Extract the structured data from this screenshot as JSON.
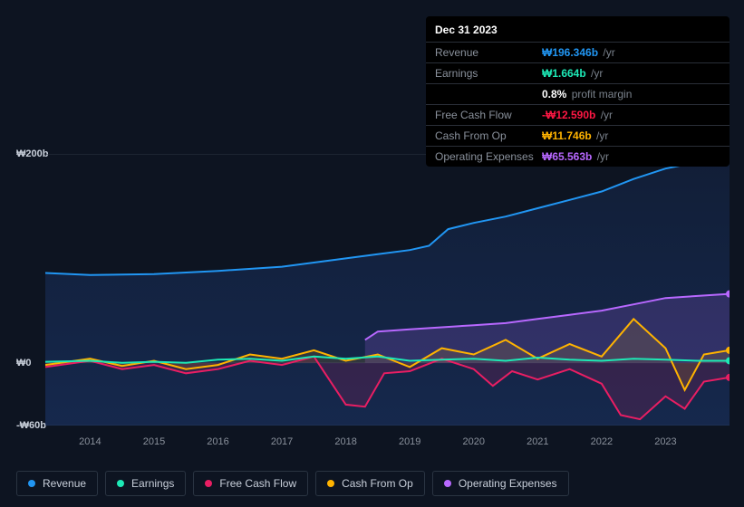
{
  "tooltip": {
    "date": "Dec 31 2023",
    "rows": [
      {
        "label": "Revenue",
        "value": "₩196.346b",
        "suffix": "/yr",
        "color": "#2196f3"
      },
      {
        "label": "Earnings",
        "value": "₩1.664b",
        "suffix": "/yr",
        "color": "#1de9b6"
      },
      {
        "label": "",
        "value": "0.8%",
        "suffix": "profit margin",
        "color": "#ffffff"
      },
      {
        "label": "Free Cash Flow",
        "value": "-₩12.590b",
        "suffix": "/yr",
        "color": "#ff1744"
      },
      {
        "label": "Cash From Op",
        "value": "₩11.746b",
        "suffix": "/yr",
        "color": "#ffb300"
      },
      {
        "label": "Operating Expenses",
        "value": "₩65.563b",
        "suffix": "/yr",
        "color": "#b868ff"
      }
    ]
  },
  "chart": {
    "colors": {
      "revenue": "#2196f3",
      "earnings": "#1de9b6",
      "fcf": "#e91e63",
      "cfo": "#ffb300",
      "opex": "#b868ff",
      "grid": "#2a3442",
      "fillBase": "rgba(33,150,243,0.08)"
    },
    "y": {
      "min": -60,
      "max": 200,
      "ticks": [
        {
          "v": 200,
          "label": "₩200b"
        },
        {
          "v": 0,
          "label": "₩0"
        },
        {
          "v": -60,
          "label": "-₩60b"
        }
      ]
    },
    "x": {
      "start": 2013.3,
      "end": 2024.0,
      "ticks": [
        2014,
        2015,
        2016,
        2017,
        2018,
        2019,
        2020,
        2021,
        2022,
        2023
      ]
    },
    "series": {
      "revenue": [
        [
          2013.3,
          86
        ],
        [
          2014,
          84
        ],
        [
          2015,
          85
        ],
        [
          2016,
          88
        ],
        [
          2017,
          92
        ],
        [
          2017.5,
          96
        ],
        [
          2018,
          100
        ],
        [
          2018.5,
          104
        ],
        [
          2019,
          108
        ],
        [
          2019.3,
          112
        ],
        [
          2019.6,
          128
        ],
        [
          2020,
          134
        ],
        [
          2020.5,
          140
        ],
        [
          2021,
          148
        ],
        [
          2021.5,
          156
        ],
        [
          2022,
          164
        ],
        [
          2022.5,
          176
        ],
        [
          2023,
          186
        ],
        [
          2023.5,
          192
        ],
        [
          2024,
          198
        ]
      ],
      "opex": [
        [
          2018.3,
          22
        ],
        [
          2018.5,
          30
        ],
        [
          2019,
          32
        ],
        [
          2019.5,
          34
        ],
        [
          2020,
          36
        ],
        [
          2020.5,
          38
        ],
        [
          2021,
          42
        ],
        [
          2021.5,
          46
        ],
        [
          2022,
          50
        ],
        [
          2022.5,
          56
        ],
        [
          2023,
          62
        ],
        [
          2023.5,
          64
        ],
        [
          2024,
          66
        ]
      ],
      "cfo": [
        [
          2013.3,
          -2
        ],
        [
          2014,
          4
        ],
        [
          2014.5,
          -3
        ],
        [
          2015,
          2
        ],
        [
          2015.5,
          -6
        ],
        [
          2016,
          -2
        ],
        [
          2016.5,
          8
        ],
        [
          2017,
          4
        ],
        [
          2017.5,
          12
        ],
        [
          2018,
          2
        ],
        [
          2018.5,
          8
        ],
        [
          2019,
          -4
        ],
        [
          2019.5,
          14
        ],
        [
          2020,
          8
        ],
        [
          2020.5,
          22
        ],
        [
          2021,
          4
        ],
        [
          2021.5,
          18
        ],
        [
          2022,
          6
        ],
        [
          2022.5,
          42
        ],
        [
          2023,
          14
        ],
        [
          2023.3,
          -26
        ],
        [
          2023.6,
          8
        ],
        [
          2024,
          12
        ]
      ],
      "earnings": [
        [
          2013.3,
          1
        ],
        [
          2014,
          2
        ],
        [
          2014.5,
          0
        ],
        [
          2015,
          1
        ],
        [
          2015.5,
          0
        ],
        [
          2016,
          3
        ],
        [
          2016.5,
          4
        ],
        [
          2017,
          2
        ],
        [
          2017.5,
          6
        ],
        [
          2018,
          4
        ],
        [
          2018.5,
          6
        ],
        [
          2019,
          2
        ],
        [
          2019.5,
          3
        ],
        [
          2020,
          4
        ],
        [
          2020.5,
          2
        ],
        [
          2021,
          5
        ],
        [
          2021.5,
          3
        ],
        [
          2022,
          2
        ],
        [
          2022.5,
          4
        ],
        [
          2023,
          3
        ],
        [
          2023.5,
          2
        ],
        [
          2024,
          2
        ]
      ],
      "fcf": [
        [
          2013.3,
          -4
        ],
        [
          2014,
          2
        ],
        [
          2014.5,
          -6
        ],
        [
          2015,
          -2
        ],
        [
          2015.5,
          -10
        ],
        [
          2016,
          -6
        ],
        [
          2016.5,
          2
        ],
        [
          2017,
          -2
        ],
        [
          2017.5,
          6
        ],
        [
          2018,
          -40
        ],
        [
          2018.3,
          -42
        ],
        [
          2018.6,
          -10
        ],
        [
          2019,
          -8
        ],
        [
          2019.5,
          4
        ],
        [
          2020,
          -6
        ],
        [
          2020.3,
          -22
        ],
        [
          2020.6,
          -8
        ],
        [
          2021,
          -16
        ],
        [
          2021.5,
          -6
        ],
        [
          2022,
          -20
        ],
        [
          2022.3,
          -50
        ],
        [
          2022.6,
          -54
        ],
        [
          2023,
          -32
        ],
        [
          2023.3,
          -44
        ],
        [
          2023.6,
          -18
        ],
        [
          2024,
          -14
        ]
      ]
    },
    "lineWidth": 2
  },
  "legend": [
    {
      "label": "Revenue",
      "colorKey": "revenue"
    },
    {
      "label": "Earnings",
      "colorKey": "earnings"
    },
    {
      "label": "Free Cash Flow",
      "colorKey": "fcf"
    },
    {
      "label": "Cash From Op",
      "colorKey": "cfo"
    },
    {
      "label": "Operating Expenses",
      "colorKey": "opex"
    }
  ]
}
